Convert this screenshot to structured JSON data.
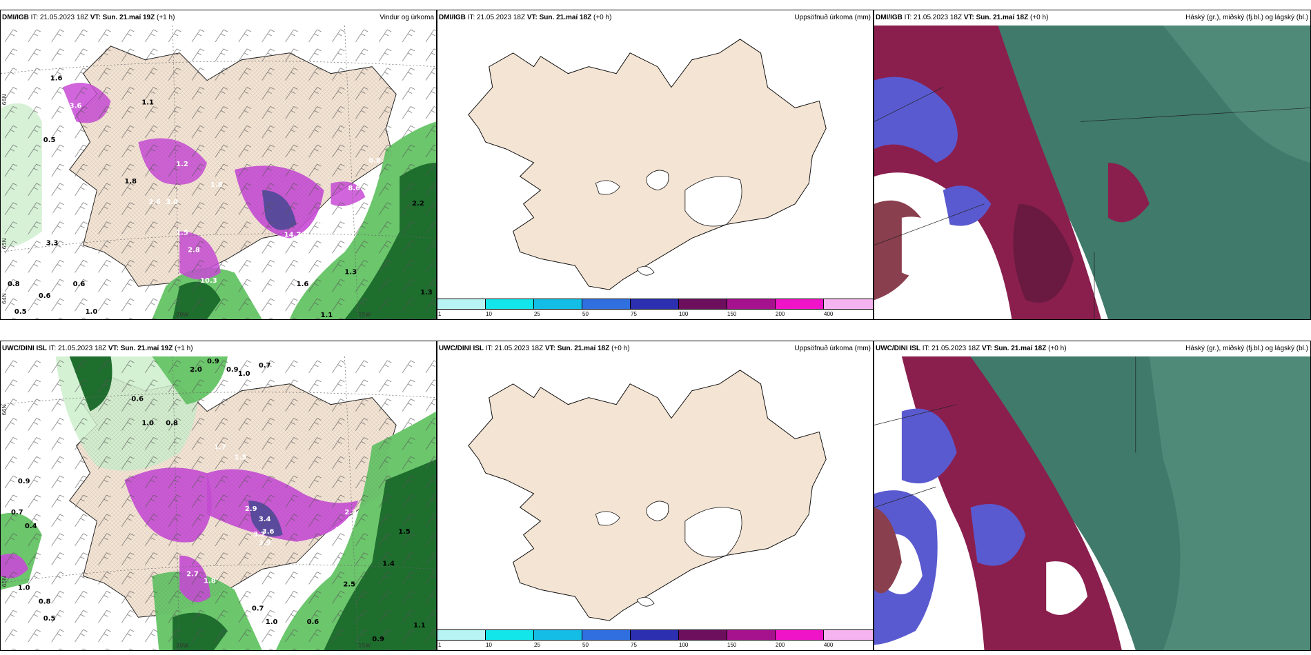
{
  "rows": [
    {
      "wind": {
        "model": "DMI/IGB",
        "it": "IT: 21.05.2023 18Z",
        "vt_label": "VT:",
        "vt_value": "Sun. 21.maí 19Z",
        "lead": "(+1 h)",
        "product": "Vindur og úrkoma",
        "labels": [
          "1.6",
          "0.5",
          "1.1",
          "3.6",
          "1.2",
          "1.8",
          "4.6",
          "3.0",
          "2.6",
          "3.3",
          "1.5",
          "2.8",
          "10.3",
          "14.7",
          "0.3",
          "8.6",
          "0.8",
          "2.2",
          "1.3",
          "0.6",
          "0.8",
          "0.5",
          "0.6",
          "1.0",
          "1.1",
          "1.6",
          "1.3",
          "1.8"
        ],
        "axis": [
          "20W",
          "15W",
          "65N",
          "64N",
          "66N"
        ]
      },
      "precip": {
        "model": "DMI/IGB",
        "it": "IT: 21.05.2023 18Z",
        "vt_label": "VT:",
        "vt_value": "Sun. 21.maí 18Z",
        "lead": "(+0 h)",
        "product": "Uppsöfnuð úrkoma (mm)"
      },
      "cloud": {
        "model": "DMI/IGB",
        "it": "IT: 21.05.2023 18Z",
        "vt_label": "VT:",
        "vt_value": "Sun. 21.maí 18Z",
        "lead": "(+0 h)",
        "product": "Háský (gr.), miðský (fj.bl.) og lágský (bl.)"
      }
    },
    {
      "wind": {
        "model": "UWC/DINI ISL",
        "it": "IT: 21.05.2023 18Z",
        "vt_label": "VT:",
        "vt_value": "Sun. 21.maí 19Z",
        "lead": "(+1 h)",
        "product": "",
        "labels": [
          "0.9",
          "2.0",
          "0.9",
          "1.0",
          "0.7",
          "0.6",
          "1.0",
          "0.8",
          "1.7",
          "1.5",
          "2.9",
          "3.4",
          "3.9",
          "3.6",
          "3.2",
          "4.5",
          "4.0",
          "2.2",
          "0.7",
          "0.4",
          "0.9",
          "1.0",
          "0.8",
          "0.5",
          "1.5",
          "1.4",
          "2.5",
          "0.7",
          "1.0",
          "0.6",
          "0.9",
          "1.1",
          "2.7",
          "1.8"
        ],
        "axis": [
          "20W",
          "15W",
          "66N",
          "65N"
        ]
      },
      "precip": {
        "model": "UWC/DINI ISL",
        "it": "IT: 21.05.2023 18Z",
        "vt_label": "VT:",
        "vt_value": "Sun. 21.maí 18Z",
        "lead": "(+0 h)",
        "product": "Uppsöfnuð úrkoma (mm)"
      },
      "cloud": {
        "model": "UWC/DINI ISL",
        "it": "IT: 21.05.2023 18Z",
        "vt_label": "VT:",
        "vt_value": "Sun. 21.maí 18Z",
        "lead": "(+0 h)",
        "product": "Háský (gr.), miðský (fj.bl.) og lágský (bl.)"
      }
    }
  ],
  "colorbar": {
    "ticks": [
      "1",
      "10",
      "25",
      "50",
      "75",
      "100",
      "150",
      "200",
      "400"
    ],
    "colors": [
      "#b8f4f4",
      "#12e6ea",
      "#14bde6",
      "#2f6fe0",
      "#2c2fb0",
      "#6e0f5e",
      "#a6128e",
      "#f014c8",
      "#f5b4f0"
    ]
  },
  "palette": {
    "land": "#f4e4d4",
    "green_light": "#cdeecd",
    "green_mid": "#6cc66c",
    "green_dark": "#1e6e2e",
    "magenta": "#c84ad6",
    "purple": "#5a4aa0",
    "cloud_teal": "#3f7a6a",
    "cloud_maroon": "#8a1f4e",
    "cloud_blue": "#5a5ad0"
  }
}
